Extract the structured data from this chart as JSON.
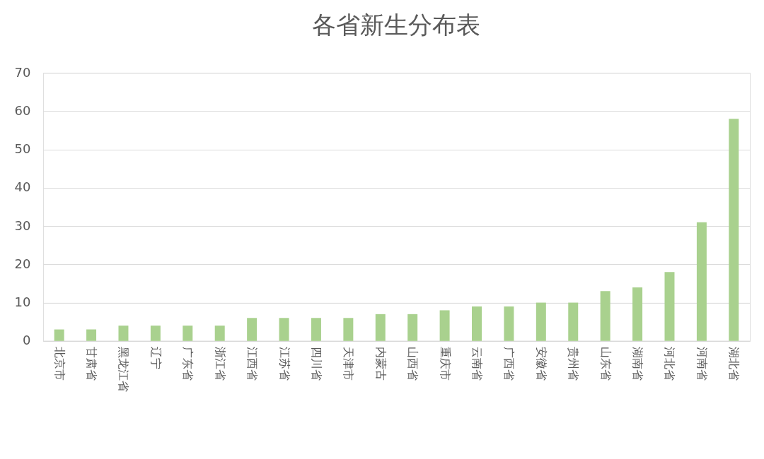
{
  "chart_data": {
    "type": "bar",
    "title": "各省新生分布表",
    "categories": [
      "北京市",
      "甘肃省",
      "黑龙江省",
      "辽宁",
      "广东省",
      "浙江省",
      "江西省",
      "江苏省",
      "四川省",
      "天津市",
      "内蒙古",
      "山西省",
      "重庆市",
      "云南省",
      "广西省",
      "安徽省",
      "贵州省",
      "山东省",
      "湖南省",
      "河北省",
      "河南省",
      "湖北省"
    ],
    "values": [
      3,
      3,
      4,
      4,
      4,
      4,
      6,
      6,
      6,
      6,
      7,
      7,
      8,
      9,
      9,
      10,
      10,
      13,
      14,
      18,
      31,
      58
    ],
    "color": "#a9d18e",
    "ylim": [
      0,
      70
    ],
    "yticks": [
      0,
      10,
      20,
      30,
      40,
      50,
      60,
      70
    ],
    "grid": "y"
  }
}
